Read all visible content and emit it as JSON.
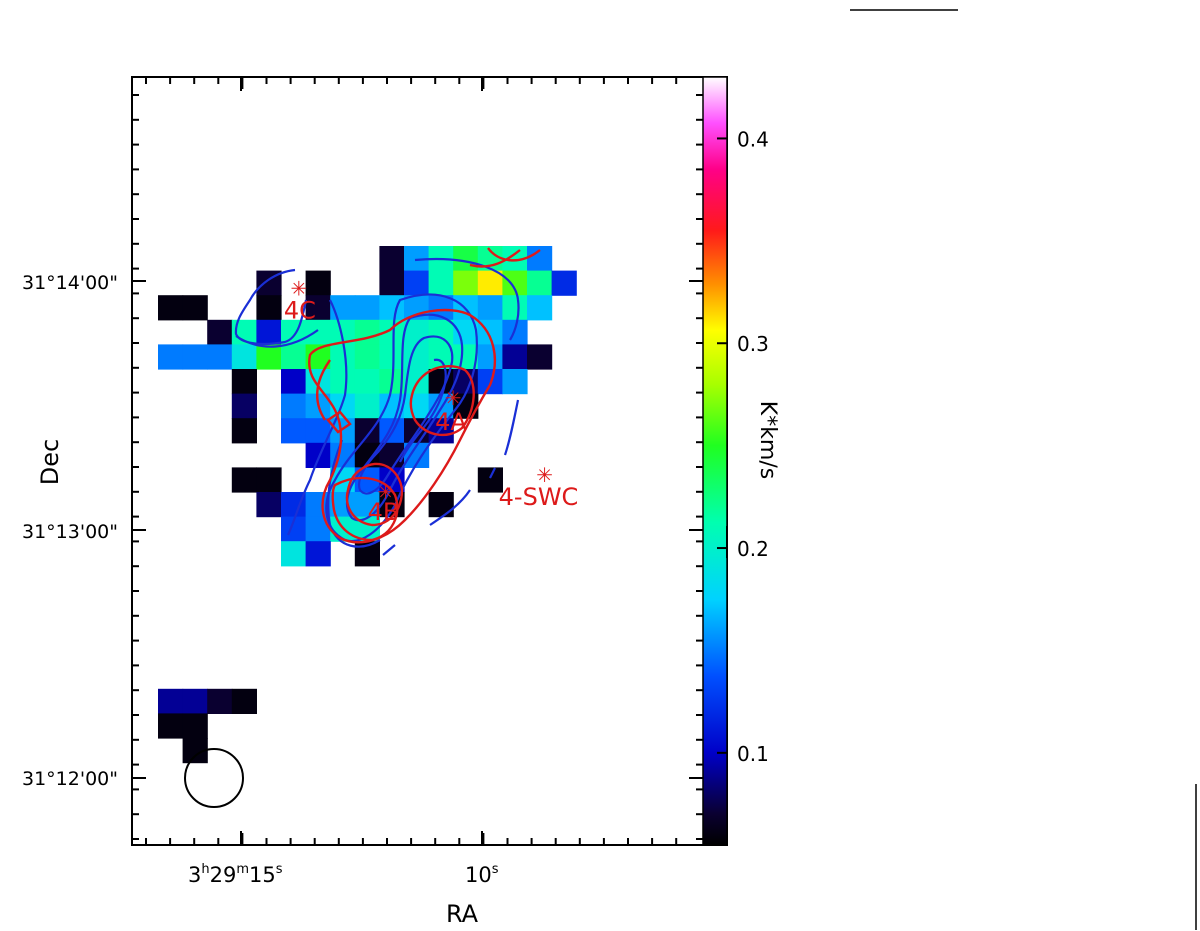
{
  "chart_data": {
    "type": "heatmap",
    "xlabel": "RA",
    "ylabel": "Dec",
    "x_ticks": [
      {
        "label_h": "3",
        "label_hs": "h",
        "label_m": "29",
        "label_ms": "m",
        "label_s": "15",
        "label_ss": "s",
        "value": "3h29m15s"
      },
      {
        "label_s": "10",
        "label_ss": "s",
        "value": "3h29m10s"
      }
    ],
    "y_ticks": [
      "31°14'00\"",
      "31°13'00\"",
      "31°12'00\""
    ],
    "colorbar": {
      "label": "K*km/s",
      "ticks": [
        0.4,
        0.3,
        0.2,
        0.1
      ],
      "tick_labels": [
        "0.4",
        "0.3",
        "0.2",
        "0.1"
      ],
      "range": [
        0.055,
        0.43
      ],
      "colormap": "rainbow (black-blue-cyan-green-yellow-red-magenta-white)"
    },
    "sources": [
      {
        "name": "4C",
        "ra_sec": 13.8,
        "dec_offset_arcmin": 1.97
      },
      {
        "name": "4A",
        "ra_sec": 10.6,
        "dec_offset_arcmin": 1.53
      },
      {
        "name": "4B",
        "ra_sec": 12.0,
        "dec_offset_arcmin": 1.15
      },
      {
        "name": "4-SWC",
        "ra_sec": 8.7,
        "dec_offset_arcmin": 1.22
      }
    ],
    "pixels_col_row_value": [
      [
        9,
        0,
        0.07
      ],
      [
        10,
        0,
        0.16
      ],
      [
        11,
        0,
        0.21
      ],
      [
        12,
        0,
        0.24
      ],
      [
        13,
        0,
        0.22
      ],
      [
        14,
        0,
        0.21
      ],
      [
        15,
        0,
        0.15
      ],
      [
        4,
        1,
        0.07
      ],
      [
        6,
        1,
        0.06
      ],
      [
        9,
        1,
        0.07
      ],
      [
        10,
        1,
        0.13
      ],
      [
        11,
        1,
        0.21
      ],
      [
        12,
        1,
        0.27
      ],
      [
        13,
        1,
        0.31
      ],
      [
        14,
        1,
        0.26
      ],
      [
        15,
        1,
        0.22
      ],
      [
        16,
        1,
        0.12
      ],
      [
        0,
        2,
        0.06
      ],
      [
        1,
        2,
        0.06
      ],
      [
        4,
        2,
        0.06
      ],
      [
        6,
        2,
        0.07
      ],
      [
        7,
        2,
        0.16
      ],
      [
        8,
        2,
        0.16
      ],
      [
        9,
        2,
        0.17
      ],
      [
        10,
        2,
        0.16
      ],
      [
        11,
        2,
        0.15
      ],
      [
        12,
        2,
        0.17
      ],
      [
        13,
        2,
        0.16
      ],
      [
        14,
        2,
        0.21
      ],
      [
        15,
        2,
        0.17
      ],
      [
        2,
        3,
        0.07
      ],
      [
        3,
        3,
        0.21
      ],
      [
        4,
        3,
        0.11
      ],
      [
        5,
        3,
        0.21
      ],
      [
        6,
        3,
        0.21
      ],
      [
        7,
        3,
        0.21
      ],
      [
        8,
        3,
        0.22
      ],
      [
        9,
        3,
        0.21
      ],
      [
        10,
        3,
        0.2
      ],
      [
        11,
        3,
        0.21
      ],
      [
        12,
        3,
        0.18
      ],
      [
        13,
        3,
        0.17
      ],
      [
        14,
        3,
        0.15
      ],
      [
        0,
        4,
        0.15
      ],
      [
        1,
        4,
        0.15
      ],
      [
        2,
        4,
        0.15
      ],
      [
        3,
        4,
        0.19
      ],
      [
        4,
        4,
        0.25
      ],
      [
        5,
        4,
        0.22
      ],
      [
        6,
        4,
        0.25
      ],
      [
        7,
        4,
        0.21
      ],
      [
        8,
        4,
        0.22
      ],
      [
        9,
        4,
        0.21
      ],
      [
        10,
        4,
        0.2
      ],
      [
        11,
        4,
        0.21
      ],
      [
        12,
        4,
        0.21
      ],
      [
        13,
        4,
        0.16
      ],
      [
        14,
        4,
        0.09
      ],
      [
        15,
        4,
        0.07
      ],
      [
        3,
        5,
        0.06
      ],
      [
        5,
        5,
        0.1
      ],
      [
        6,
        5,
        0.19
      ],
      [
        7,
        5,
        0.21
      ],
      [
        8,
        5,
        0.21
      ],
      [
        9,
        5,
        0.22
      ],
      [
        10,
        5,
        0.2
      ],
      [
        11,
        5,
        0.06
      ],
      [
        12,
        5,
        0.08
      ],
      [
        13,
        5,
        0.13
      ],
      [
        14,
        5,
        0.16
      ],
      [
        3,
        6,
        0.08
      ],
      [
        5,
        6,
        0.15
      ],
      [
        6,
        6,
        0.16
      ],
      [
        7,
        6,
        0.18
      ],
      [
        8,
        6,
        0.2
      ],
      [
        9,
        6,
        0.17
      ],
      [
        10,
        6,
        0.18
      ],
      [
        11,
        6,
        0.16
      ],
      [
        12,
        6,
        0.06
      ],
      [
        3,
        7,
        0.06
      ],
      [
        5,
        7,
        0.14
      ],
      [
        6,
        7,
        0.14
      ],
      [
        7,
        7,
        0.16
      ],
      [
        8,
        7,
        0.07
      ],
      [
        9,
        7,
        0.14
      ],
      [
        10,
        7,
        0.07
      ],
      [
        11,
        7,
        0.09
      ],
      [
        6,
        8,
        0.1
      ],
      [
        7,
        8,
        0.15
      ],
      [
        8,
        8,
        0.06
      ],
      [
        9,
        8,
        0.07
      ],
      [
        10,
        8,
        0.15
      ],
      [
        3,
        9,
        0.06
      ],
      [
        4,
        9,
        0.06
      ],
      [
        7,
        9,
        0.18
      ],
      [
        8,
        9,
        0.14
      ],
      [
        9,
        9,
        0.1
      ],
      [
        13,
        9,
        0.06
      ],
      [
        4,
        10,
        0.08
      ],
      [
        5,
        10,
        0.12
      ],
      [
        6,
        10,
        0.15
      ],
      [
        7,
        10,
        0.16
      ],
      [
        8,
        10,
        0.16
      ],
      [
        9,
        10,
        0.06
      ],
      [
        11,
        10,
        0.06
      ],
      [
        5,
        11,
        0.13
      ],
      [
        6,
        11,
        0.15
      ],
      [
        7,
        11,
        0.2
      ],
      [
        8,
        11,
        0.2
      ],
      [
        5,
        12,
        0.19
      ],
      [
        6,
        12,
        0.11
      ],
      [
        8,
        12,
        0.06
      ],
      [
        0,
        18,
        0.09
      ],
      [
        1,
        18,
        0.09
      ],
      [
        2,
        18,
        0.07
      ],
      [
        3,
        18,
        0.06
      ],
      [
        0,
        19,
        0.06
      ],
      [
        1,
        19,
        0.06
      ],
      [
        1,
        20,
        0.06
      ]
    ],
    "contours": [
      {
        "name": "",
        "color": "#1a2fd6"
      },
      {
        "name": "",
        "color": "#dd1a1a"
      }
    ],
    "beam": "circle, lower-left"
  }
}
